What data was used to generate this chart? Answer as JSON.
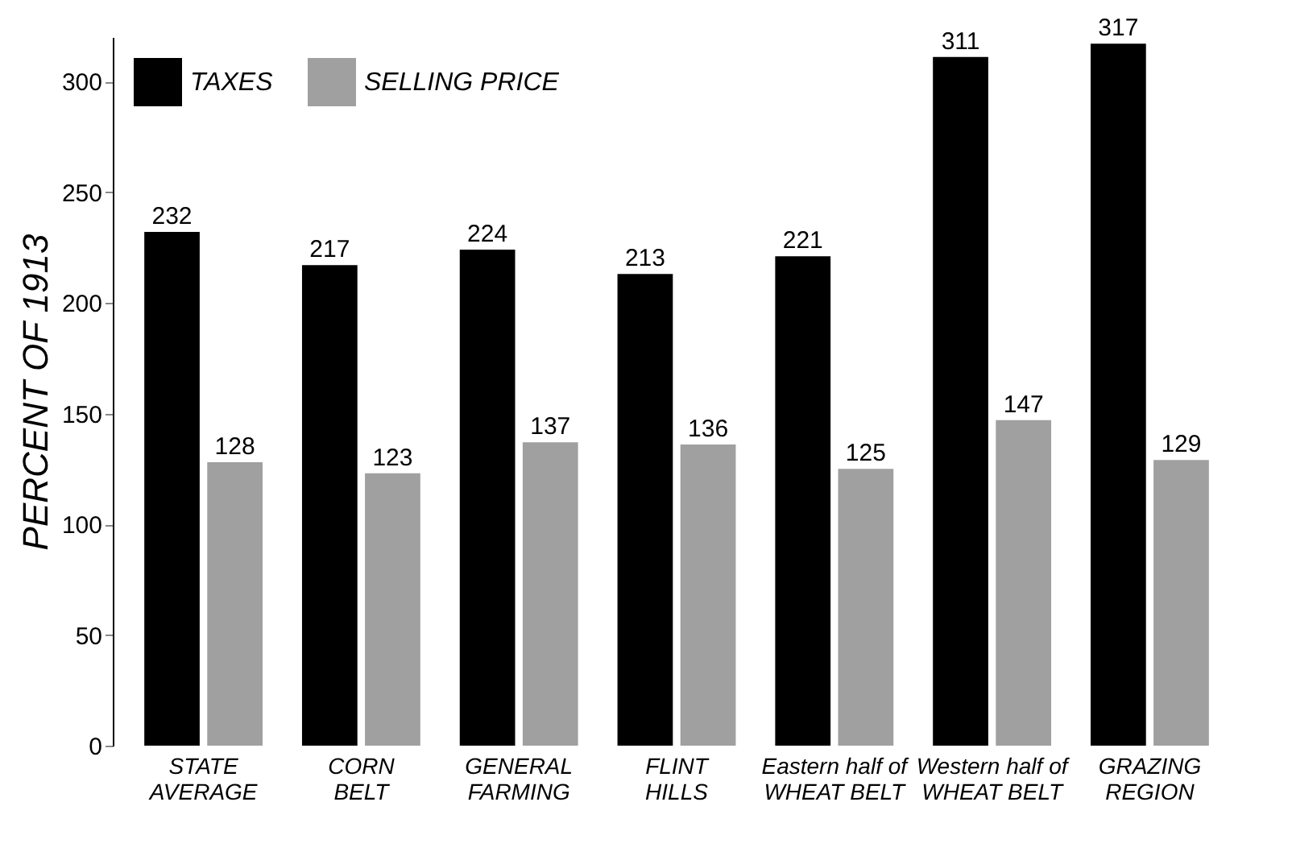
{
  "chart_data": {
    "type": "bar",
    "ylabel": "PERCENT OF 1913",
    "categories": [
      "STATE\nAVERAGE",
      "CORN\nBELT",
      "GENERAL\nFARMING",
      "FLINT\nHILLS",
      "Eastern half of\nWHEAT BELT",
      "Western half of\nWHEAT BELT",
      "GRAZING\nREGION"
    ],
    "series": [
      {
        "name": "TAXES",
        "color": "#000000",
        "values": [
          232,
          217,
          224,
          213,
          221,
          311,
          317
        ]
      },
      {
        "name": "SELLING PRICE",
        "color": "#a0a0a0",
        "values": [
          128,
          123,
          137,
          136,
          125,
          147,
          129
        ]
      }
    ],
    "ylim": [
      0,
      320
    ],
    "yticks": [
      0,
      50,
      100,
      150,
      200,
      250,
      300
    ],
    "data_labels": true,
    "grid": false,
    "legend": "top left"
  }
}
